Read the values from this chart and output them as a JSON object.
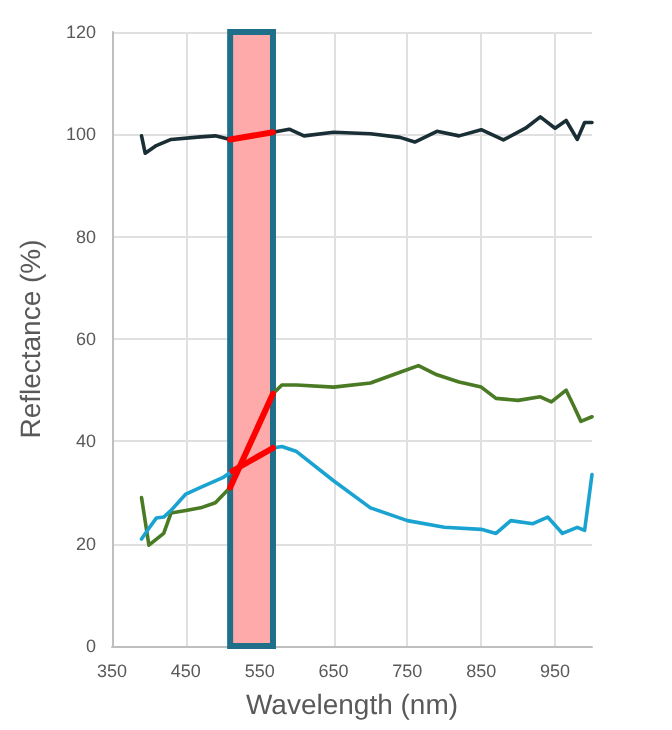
{
  "chart_data": {
    "type": "line",
    "xlabel": "Wavelength (nm)",
    "ylabel": "Reflectance (%)",
    "xlim": [
      350,
      1000
    ],
    "xticks": [
      350,
      450,
      550,
      650,
      750,
      850,
      950
    ],
    "ylim": [
      0,
      120
    ],
    "yticks": [
      0,
      20,
      40,
      60,
      80,
      100,
      120
    ],
    "grid": true,
    "marker": "none",
    "line_style": "solid",
    "bands": [
      {
        "axis": "x",
        "from": 510,
        "to": 568,
        "color": "#ffaaaa"
      }
    ],
    "series": [
      {
        "color": "#1a2e35",
        "x": [
          390,
          395,
          410,
          430,
          470,
          490,
          510,
          568,
          590,
          610,
          650,
          700,
          740,
          760,
          790,
          820,
          850,
          880,
          910,
          930,
          950,
          965,
          980,
          990,
          1000
        ],
        "values": [
          99.7,
          96.3,
          97.8,
          99,
          99.5,
          99.7,
          99,
          100.4,
          101,
          99.7,
          100.4,
          100.1,
          99.4,
          98.5,
          100.6,
          99.7,
          100.9,
          98.9,
          101.2,
          103.4,
          101.2,
          102.7,
          99,
          102.3,
          102.3
        ]
      },
      {
        "color": "#4a7a24",
        "x": [
          390,
          400,
          420,
          430,
          450,
          470,
          490,
          510,
          568,
          580,
          600,
          650,
          700,
          740,
          765,
          790,
          820,
          850,
          870,
          900,
          930,
          945,
          965,
          975,
          985,
          1000
        ],
        "values": [
          29,
          19.7,
          22,
          26,
          26.5,
          27,
          28,
          31,
          49.3,
          51,
          51,
          50.6,
          51.4,
          53.5,
          54.8,
          53,
          51.6,
          50.6,
          48.4,
          48,
          48.7,
          47.7,
          50,
          47,
          43.9,
          44.8
        ]
      },
      {
        "color": "#1aa3d1",
        "x": [
          390,
          400,
          410,
          420,
          430,
          450,
          470,
          500,
          513,
          568,
          580,
          600,
          650,
          700,
          750,
          800,
          850,
          870,
          890,
          920,
          940,
          960,
          980,
          990,
          1000
        ],
        "values": [
          20.9,
          23,
          25,
          25.2,
          26.5,
          29.7,
          31,
          32.9,
          34.2,
          38.7,
          39,
          38,
          32.3,
          27,
          24.5,
          23.2,
          22.8,
          22,
          24.5,
          23.9,
          25.2,
          22,
          23.2,
          22.6,
          33.5
        ]
      },
      {
        "color": "#ff0000",
        "x": [
          510,
          568
        ],
        "values": [
          99,
          100.4
        ]
      },
      {
        "color": "#ff0000",
        "x": [
          510,
          568
        ],
        "values": [
          31,
          49.3
        ]
      },
      {
        "color": "#ff0000",
        "x": [
          513,
          568
        ],
        "values": [
          34.2,
          38.7
        ]
      }
    ]
  }
}
